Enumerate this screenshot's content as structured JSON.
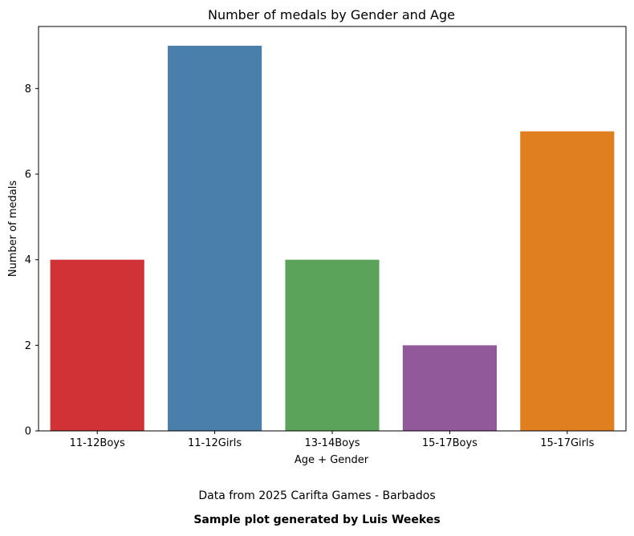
{
  "chart_data": {
    "type": "bar",
    "title": "Number of medals by Gender and Age",
    "xlabel": "Age + Gender",
    "ylabel": "Number of medals",
    "categories": [
      "11-12Boys",
      "11-12Girls",
      "13-14Boys",
      "15-17Boys",
      "15-17Girls"
    ],
    "values": [
      4,
      9,
      4,
      2,
      7
    ],
    "colors": [
      "#d03235",
      "#4a7eab",
      "#5ba35a",
      "#91599a",
      "#e07f20"
    ],
    "ylim": [
      0,
      9.45
    ],
    "yticks": [
      0,
      2,
      4,
      6,
      8
    ],
    "grid": false,
    "legend": "none"
  },
  "footnotes": {
    "source": "Data from 2025 Carifta Games - Barbados",
    "credit": "Sample plot generated by Luis Weekes"
  }
}
